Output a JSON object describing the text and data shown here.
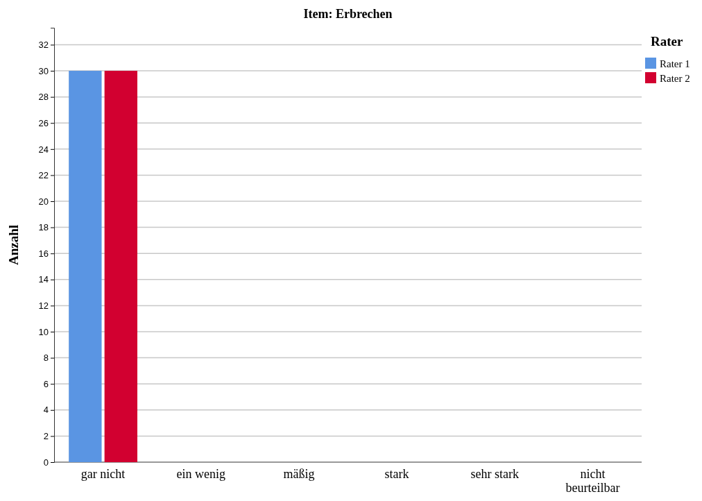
{
  "chart_data": {
    "type": "bar",
    "title": "Item: Erbrechen",
    "ylabel": "Anzahl",
    "legend_title": "Rater",
    "categories": [
      "gar nicht",
      "ein wenig",
      "mäßig",
      "stark",
      "sehr stark",
      "nicht beurteilbar"
    ],
    "series": [
      {
        "name": "Rater 1",
        "color": "#5a95e3",
        "values": [
          30,
          0,
          0,
          0,
          0,
          0
        ]
      },
      {
        "name": "Rater 2",
        "color": "#d20030",
        "values": [
          30,
          0,
          0,
          0,
          0,
          0
        ]
      }
    ],
    "ylim": [
      0,
      33.3
    ],
    "yticks": [
      0,
      2,
      4,
      6,
      8,
      10,
      12,
      14,
      16,
      18,
      20,
      22,
      24,
      26,
      28,
      30,
      32
    ],
    "grid": "y",
    "legend": "top right"
  }
}
